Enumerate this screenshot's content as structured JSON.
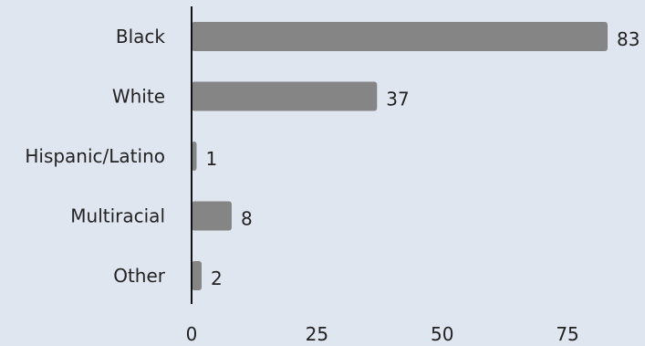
{
  "chart_data": {
    "type": "bar",
    "orientation": "horizontal",
    "categories": [
      "Black",
      "White",
      "Hispanic/Latino",
      "Multiracial",
      "Other"
    ],
    "values": [
      83,
      37,
      1,
      8,
      2
    ],
    "xticks": [
      0,
      25,
      50,
      75
    ],
    "xlim": [
      0,
      83
    ],
    "title": "",
    "xlabel": "",
    "ylabel": "",
    "grid": false,
    "legend": "none",
    "bar_color": "#858585",
    "background_color": "#e0e6f0"
  }
}
